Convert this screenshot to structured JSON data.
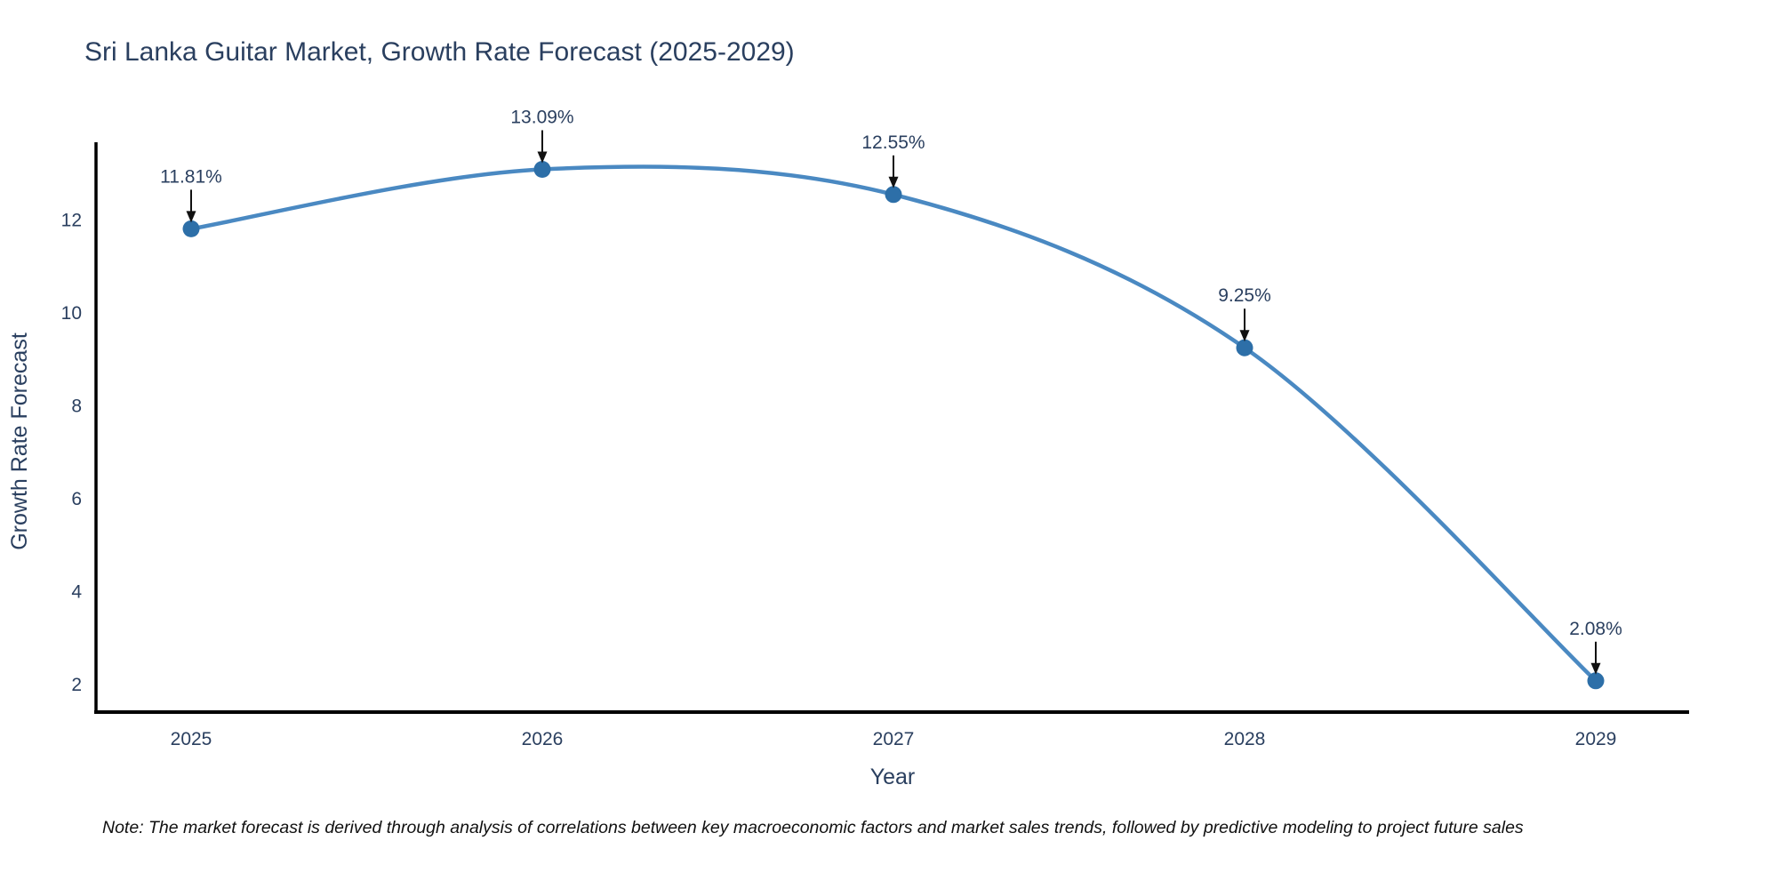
{
  "title": "Sri Lanka Guitar Market, Growth Rate Forecast (2025-2029)",
  "note": "Note: The market forecast is derived through analysis of correlations between key macroeconomic factors and market sales trends, followed by predictive modeling to project future sales",
  "chart_data": {
    "type": "line",
    "title": "Sri Lanka Guitar Market, Growth Rate Forecast (2025-2029)",
    "xlabel": "Year",
    "ylabel": "Growth Rate Forecast",
    "x": [
      2025,
      2026,
      2027,
      2028,
      2029
    ],
    "xticklabels": [
      "2025",
      "2026",
      "2027",
      "2028",
      "2029"
    ],
    "values": [
      11.81,
      13.09,
      12.55,
      9.25,
      2.08
    ],
    "point_labels": [
      "11.81%",
      "13.09%",
      "12.55%",
      "9.25%",
      "2.08%"
    ],
    "yticks": [
      2,
      4,
      6,
      8,
      10,
      12
    ],
    "ylim": [
      1.4,
      13.7
    ],
    "line_shape": "spline",
    "markers": true,
    "grid": false,
    "legend": "none",
    "annotation_style": "value-label-with-down-arrow",
    "colors": {
      "line": "#4a89c2",
      "marker": "#2d6fa8",
      "axis": "#000000",
      "arrow": "#111111",
      "text": "#2a3f5f",
      "note_text": "#111111",
      "background": "#ffffff"
    }
  }
}
